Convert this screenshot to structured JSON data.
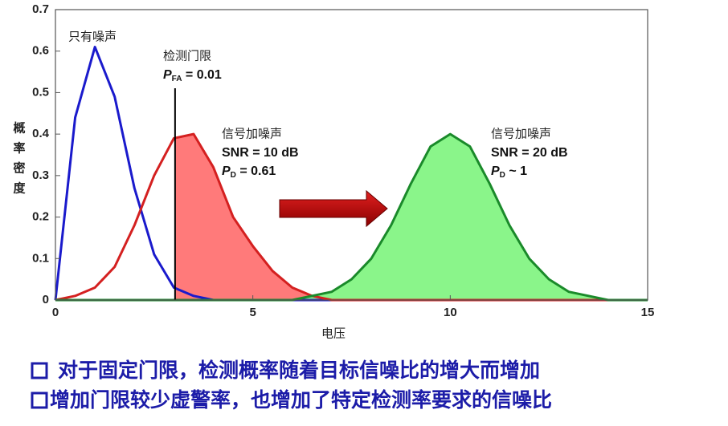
{
  "chart_data": {
    "type": "line",
    "x": [
      0,
      0.5,
      1,
      1.5,
      2,
      2.5,
      3,
      3.5,
      4,
      4.5,
      5,
      5.5,
      6,
      6.5,
      7,
      7.5,
      8,
      8.5,
      9,
      9.5,
      10,
      10.5,
      11,
      11.5,
      12,
      12.5,
      13,
      13.5,
      14,
      14.5,
      15
    ],
    "series": [
      {
        "color": "#1a1acc",
        "fill": "#3a3ab8",
        "values": [
          0,
          0.44,
          0.61,
          0.49,
          0.27,
          0.11,
          0.03,
          0.01,
          0,
          0,
          0,
          0,
          0,
          0,
          0,
          0,
          0,
          0,
          0,
          0,
          0,
          0,
          0,
          0,
          0,
          0,
          0,
          0,
          0,
          0,
          0
        ]
      },
      {
        "color": "#d42020",
        "fill": "#ff7a7a",
        "values": [
          0,
          0.01,
          0.03,
          0.08,
          0.18,
          0.3,
          0.39,
          0.4,
          0.32,
          0.2,
          0.13,
          0.07,
          0.03,
          0.01,
          0,
          0,
          0,
          0,
          0,
          0,
          0,
          0,
          0,
          0,
          0,
          0,
          0,
          0,
          0,
          0,
          0
        ]
      },
      {
        "color": "#1a8a2a",
        "fill": "#8af58a",
        "values": [
          0,
          0,
          0,
          0,
          0,
          0,
          0,
          0,
          0,
          0,
          0,
          0,
          0,
          0.01,
          0.02,
          0.05,
          0.1,
          0.18,
          0.28,
          0.37,
          0.4,
          0.37,
          0.28,
          0.18,
          0.1,
          0.05,
          0.02,
          0.01,
          0,
          0,
          0
        ]
      }
    ],
    "threshold": 3.03,
    "xlim": [
      0,
      15
    ],
    "xticks": [
      0,
      5,
      10,
      15
    ],
    "ylim": [
      0,
      0.7
    ],
    "yticks": [
      0,
      0.1,
      0.2,
      0.3,
      0.4,
      0.5,
      0.6,
      0.7
    ],
    "ylabel": [
      "概",
      "率",
      "密",
      "度"
    ],
    "xlabel": "电压",
    "annotations": {
      "noise": "只有噪声",
      "threshold_label": "检测门限",
      "pfa": {
        "symbol": "P",
        "sub": "FA",
        "rest": " = 0.01"
      },
      "signal1": {
        "title": "信号加噪声",
        "snr": "SNR = 10 dB",
        "symbol": "P",
        "sub": "D",
        "rest": " = 0.61"
      },
      "signal2": {
        "title": "信号加噪声",
        "snr": "SNR = 20 dB",
        "symbol": "P",
        "sub": "D",
        "rest": " ~ 1"
      }
    }
  },
  "bullets": [
    "对于固定门限，检测概率随着目标信噪比的增大而增加",
    "增加门限较少虚警率，也增加了特定检测率要求的信噪比"
  ]
}
